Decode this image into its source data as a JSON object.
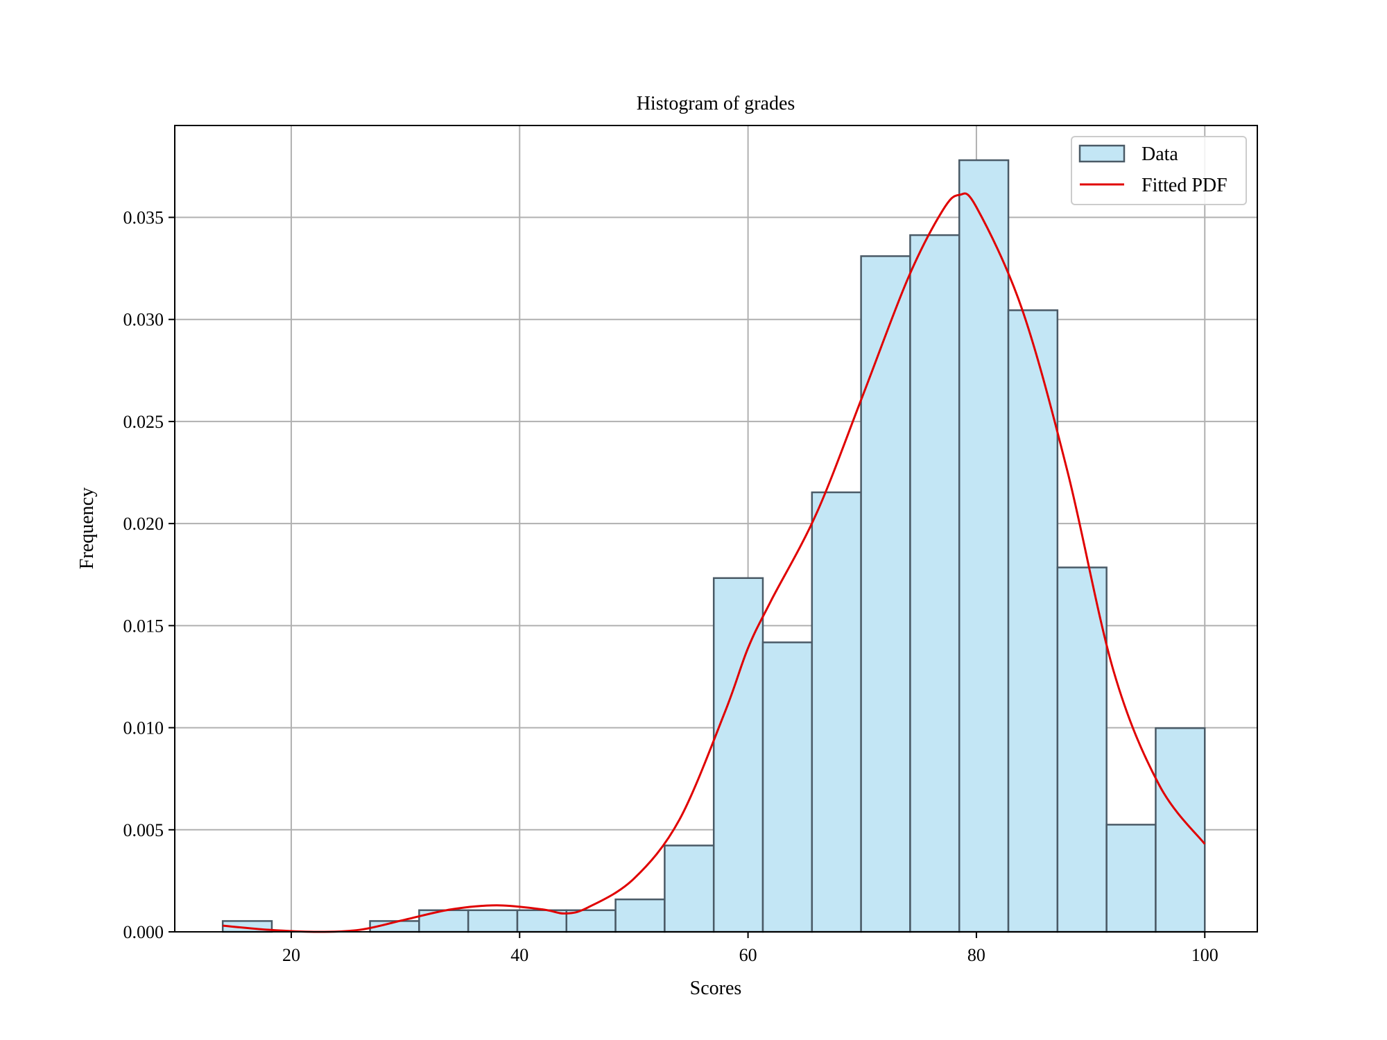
{
  "chart_data": {
    "type": "bar",
    "title": "Histogram of grades",
    "xlabel": "Scores",
    "ylabel": "Frequency",
    "xlim": [
      9.8,
      104.6
    ],
    "ylim": [
      0,
      0.0395
    ],
    "xticks": [
      20,
      40,
      60,
      80,
      100
    ],
    "yticks": [
      0.0,
      0.005,
      0.01,
      0.015,
      0.02,
      0.025,
      0.03,
      0.035
    ],
    "ytick_labels": [
      "0.000",
      "0.005",
      "0.010",
      "0.015",
      "0.020",
      "0.025",
      "0.030",
      "0.035"
    ],
    "grid": true,
    "legend_position": "top-right",
    "colors": {
      "bar_fill": "#c3e6f5",
      "bar_edge": "#4a5a66",
      "line": "#e00000",
      "grid": "#b0b0b0"
    },
    "bins": [
      {
        "start": 14.0,
        "end": 18.3,
        "value": 0.00053
      },
      {
        "start": 18.3,
        "end": 22.6,
        "value": 0.0
      },
      {
        "start": 22.6,
        "end": 26.9,
        "value": 0.0
      },
      {
        "start": 26.9,
        "end": 31.2,
        "value": 0.00053
      },
      {
        "start": 31.2,
        "end": 35.5,
        "value": 0.00106
      },
      {
        "start": 35.5,
        "end": 39.8,
        "value": 0.00106
      },
      {
        "start": 39.8,
        "end": 44.1,
        "value": 0.00106
      },
      {
        "start": 44.1,
        "end": 48.4,
        "value": 0.00106
      },
      {
        "start": 48.4,
        "end": 52.7,
        "value": 0.00159
      },
      {
        "start": 52.7,
        "end": 57.0,
        "value": 0.00423
      },
      {
        "start": 57.0,
        "end": 61.3,
        "value": 0.01733
      },
      {
        "start": 61.3,
        "end": 65.6,
        "value": 0.01418
      },
      {
        "start": 65.6,
        "end": 69.9,
        "value": 0.02153
      },
      {
        "start": 69.9,
        "end": 74.2,
        "value": 0.0331
      },
      {
        "start": 74.2,
        "end": 78.5,
        "value": 0.03413
      },
      {
        "start": 78.5,
        "end": 82.8,
        "value": 0.0378
      },
      {
        "start": 82.8,
        "end": 87.1,
        "value": 0.03045
      },
      {
        "start": 87.1,
        "end": 91.4,
        "value": 0.01785
      },
      {
        "start": 91.4,
        "end": 95.7,
        "value": 0.00525
      },
      {
        "start": 95.7,
        "end": 100.0,
        "value": 0.00998
      }
    ],
    "series": [
      {
        "name": "Fitted PDF",
        "type": "line",
        "x": [
          14,
          18,
          22,
          26,
          30,
          34,
          38,
          42,
          44,
          46,
          50,
          54,
          58,
          60,
          62,
          66,
          70,
          74,
          77,
          78.5,
          80,
          84,
          88,
          92,
          96,
          100
        ],
        "y": [
          0.0003,
          0.0001,
          0.0,
          0.0001,
          0.0006,
          0.0011,
          0.0013,
          0.0011,
          0.0009,
          0.0012,
          0.0026,
          0.0055,
          0.0108,
          0.0139,
          0.0162,
          0.0205,
          0.0262,
          0.032,
          0.0353,
          0.0361,
          0.0355,
          0.0305,
          0.0225,
          0.0128,
          0.0072,
          0.0043
        ]
      }
    ],
    "legend": [
      {
        "label": "Data",
        "kind": "patch"
      },
      {
        "label": "Fitted PDF",
        "kind": "line"
      }
    ]
  }
}
